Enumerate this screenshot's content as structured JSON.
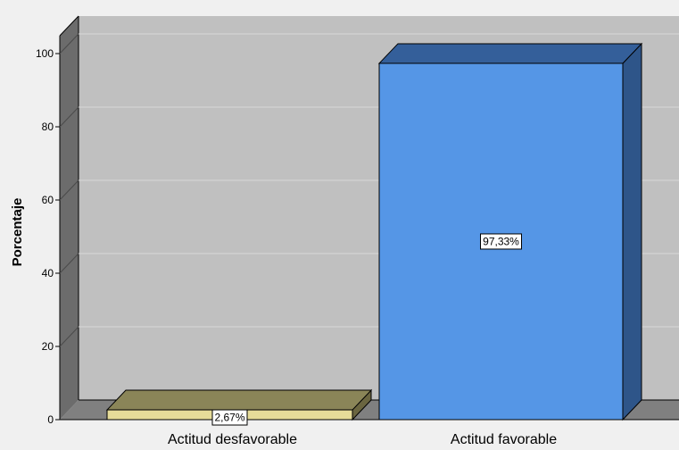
{
  "chart_data": {
    "type": "bar",
    "categories": [
      "Actitud desfavorable",
      "Actitud favorable"
    ],
    "values": [
      2.67,
      97.33
    ],
    "data_labels": [
      "2,67%",
      "97,33%"
    ],
    "title": "",
    "xlabel": "",
    "ylabel": "Porcentaje",
    "ylim": [
      0,
      100
    ],
    "yticks": [
      0,
      20,
      40,
      60,
      80,
      100
    ],
    "grid": true,
    "style": "3d",
    "colors": {
      "background": "#f0f0f0",
      "plot_back": "#c0c0c0",
      "wall_side": "#6c6c6c",
      "floor": "#808080",
      "bar_desfavorable_front": "#e6dc99",
      "bar_desfavorable_top": "#8a8558",
      "bar_desfavorable_side": "#6a6540",
      "bar_favorable_front": "#5596e6",
      "bar_favorable_top": "#345f9a",
      "bar_favorable_side": "#2e5589"
    }
  }
}
